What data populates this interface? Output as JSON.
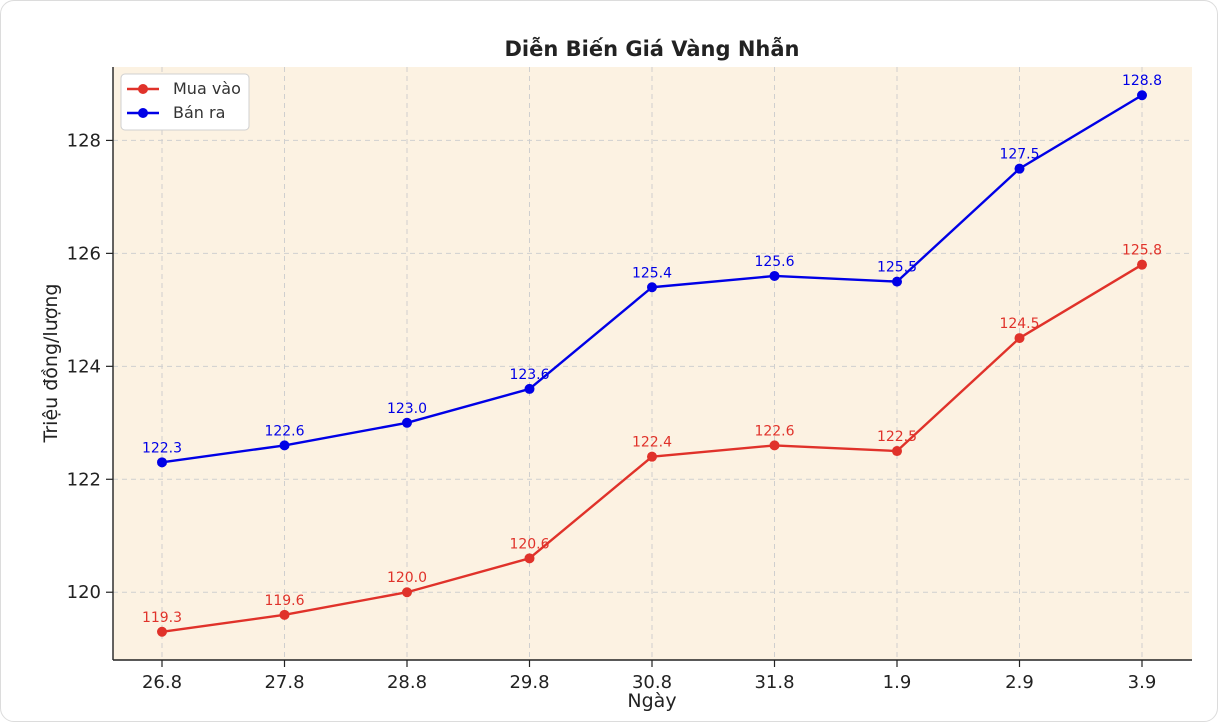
{
  "chart_data": {
    "type": "line",
    "title": "Diễn Biến Giá Vàng Nhẫn",
    "xlabel": "Ngày",
    "ylabel": "Triệu đồng/lượng",
    "categories": [
      "26.8",
      "27.8",
      "28.8",
      "29.8",
      "30.8",
      "31.8",
      "1.9",
      "2.9",
      "3.9"
    ],
    "series": [
      {
        "name": "Mua vào",
        "color": "#e0322a",
        "values": [
          119.3,
          119.6,
          120.0,
          120.6,
          122.4,
          122.6,
          122.5,
          124.5,
          125.8
        ],
        "labels": [
          "119.3",
          "119.6",
          "120.0",
          "120.6",
          "122.4",
          "122.6",
          "122.5",
          "124.5",
          "125.8"
        ]
      },
      {
        "name": "Bán ra",
        "color": "#0000e6",
        "values": [
          122.3,
          122.6,
          123.0,
          123.6,
          125.4,
          125.6,
          125.5,
          127.5,
          128.8
        ],
        "labels": [
          "122.3",
          "122.6",
          "123.0",
          "123.6",
          "125.4",
          "125.6",
          "125.5",
          "127.5",
          "128.8"
        ]
      }
    ],
    "yticks": [
      "120",
      "122",
      "124",
      "126",
      "128"
    ],
    "ylim": [
      118.8,
      129.3
    ],
    "grid": true,
    "legend_position": "top-left",
    "plot_background": "#fcf2e2"
  }
}
